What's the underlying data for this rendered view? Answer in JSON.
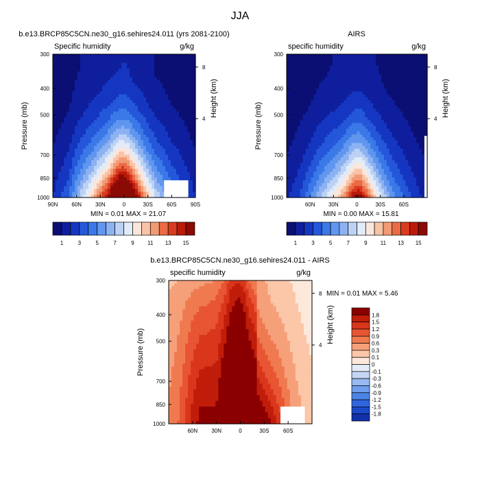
{
  "main_title": "JJA",
  "palettes": {
    "q": [
      "#0b0f73",
      "#0f1e9c",
      "#1536c0",
      "#2457d9",
      "#3b78e8",
      "#6096ee",
      "#8db2f2",
      "#bcd2f5",
      "#e2ebf8",
      "#fbe6dc",
      "#f8c3a6",
      "#f29a73",
      "#ea6b45",
      "#d93b20",
      "#bb1a0a",
      "#8b0a05",
      "#7a0000"
    ],
    "d": [
      "#0b0f73",
      "#1030a8",
      "#1a48c8",
      "#2f65dd",
      "#4a84e6",
      "#6e9eec",
      "#98b9f1",
      "#c4d6f5",
      "#e4ecf8",
      "#fde8dc",
      "#fbc7a8",
      "#f6a07a",
      "#f07a50",
      "#e85533",
      "#d9361c",
      "#c01d0a",
      "#8b0000"
    ]
  },
  "chart_data": [
    {
      "type": "heatmap",
      "panel": "model",
      "title": "b.e13.BRCP85C5CN.ne30_g16.sehires24.011 (yrs 2081-2100)",
      "left_label": "Specific humidity",
      "right_label": "g/kg",
      "ylabel": "Pressure (mb)",
      "y2label": "Height (km)",
      "yticks": [
        "300",
        "400",
        "500",
        "700",
        "850",
        "1000"
      ],
      "y2ticks": [
        "8",
        "4"
      ],
      "xticks": [
        "90N",
        "60N",
        "30N",
        "0",
        "30S",
        "60S",
        "90S"
      ],
      "xlim": [
        "90N",
        "90S"
      ],
      "ylim": [
        1000,
        300
      ],
      "min_max": "MIN =  0.01   MAX =  21.07",
      "levels": [
        1,
        2,
        3,
        4,
        5,
        6,
        7,
        8,
        9,
        10,
        11,
        12,
        13,
        14,
        15
      ],
      "colorbar_labels": [
        "1",
        "3",
        "5",
        "7",
        "9",
        "11",
        "13",
        "15"
      ],
      "profile": {
        "lat": [
          90,
          80,
          70,
          60,
          50,
          40,
          30,
          20,
          12,
          5,
          0,
          -5,
          -10,
          -20,
          -30,
          -40,
          -50,
          -60,
          -70,
          -80,
          -90
        ],
        "peak": [
          2.0,
          3.0,
          4.0,
          6.5,
          8.5,
          10.5,
          13,
          15.5,
          19,
          21,
          21,
          20,
          18,
          14,
          10.5,
          8,
          6.5,
          5,
          4,
          3,
          2
        ],
        "top": [
          0.4,
          0.5,
          0.6,
          0.9,
          1.1,
          1.3,
          1.5,
          1.7,
          1.8,
          1.9,
          2.0,
          1.9,
          1.7,
          1.5,
          1.2,
          0.9,
          0.8,
          0.6,
          0.5,
          0.4,
          0.3
        ]
      },
      "masked": "south-pole-surface"
    },
    {
      "type": "heatmap",
      "panel": "obs",
      "title": "AIRS",
      "left_label": "specific humidity",
      "right_label": "g/kg",
      "ylabel": "Pressure (mb)",
      "y2label": "Height (km)",
      "yticks": [
        "300",
        "400",
        "500",
        "700",
        "850",
        "1000"
      ],
      "y2ticks": [
        "8",
        "4"
      ],
      "xticks": [
        "60N",
        "30N",
        "0",
        "30S",
        "60S"
      ],
      "xlim": [
        "90N",
        "90S"
      ],
      "ylim": [
        1000,
        300
      ],
      "min_max": "MIN =  0.00   MAX =  15.81",
      "levels": [
        1,
        2,
        3,
        4,
        5,
        6,
        7,
        8,
        9,
        10,
        11,
        12,
        13,
        14,
        15
      ],
      "colorbar_labels": [
        "1",
        "3",
        "5",
        "7",
        "9",
        "11",
        "13",
        "15"
      ],
      "profile": {
        "lat": [
          90,
          80,
          70,
          60,
          50,
          40,
          30,
          20,
          12,
          5,
          0,
          -5,
          -10,
          -20,
          -30,
          -40,
          -50,
          -60,
          -70,
          -80,
          -90
        ],
        "peak": [
          1.8,
          2.5,
          3.5,
          5,
          6.5,
          8,
          9.5,
          11,
          13,
          15,
          15.8,
          15.5,
          14,
          11,
          8.5,
          6.5,
          5,
          4,
          3,
          2.2,
          1.5
        ],
        "top": [
          0.3,
          0.4,
          0.5,
          0.6,
          0.8,
          0.9,
          1.0,
          1.2,
          1.3,
          1.4,
          1.4,
          1.4,
          1.3,
          1.1,
          0.9,
          0.7,
          0.6,
          0.5,
          0.4,
          0.3,
          0.3
        ]
      },
      "masked": "poles"
    },
    {
      "type": "heatmap",
      "panel": "diff",
      "title": "b.e13.BRCP85C5CN.ne30_g16.sehires24.011 - AIRS",
      "left_label": "specific humidity",
      "right_label": "g/kg",
      "ylabel": "Pressure (mb)",
      "y2label": "Height (km)",
      "yticks": [
        "300",
        "400",
        "500",
        "700",
        "850",
        "1000"
      ],
      "y2ticks": [
        "8",
        "4"
      ],
      "xticks": [
        "60N",
        "30N",
        "0",
        "30S",
        "60S"
      ],
      "xlim": [
        "90N",
        "90S"
      ],
      "ylim": [
        1000,
        300
      ],
      "min_max": "MIN =  0.01   MAX =   5.46",
      "levels": [
        -1.8,
        -1.5,
        -1.2,
        -0.9,
        -0.6,
        -0.3,
        -0.1,
        0,
        0.1,
        0.3,
        0.6,
        0.9,
        1.2,
        1.5,
        1.8
      ],
      "colorbar_labels": [
        "1.8",
        "1.5",
        "1.2",
        "0.9",
        "0.6",
        "0.3",
        "0.1",
        "0",
        "-0.1",
        "-0.3",
        "-0.6",
        "-0.9",
        "-1.2",
        "-1.5",
        "-1.8"
      ],
      "profile": {
        "lat": [
          90,
          80,
          70,
          60,
          50,
          40,
          30,
          20,
          12,
          5,
          0,
          -5,
          -10,
          -20,
          -30,
          -40,
          -50,
          -60,
          -70,
          -80,
          -90
        ],
        "peak": [
          1.2,
          1.5,
          2.2,
          3.0,
          3.5,
          3.5,
          3.5,
          4.5,
          5.2,
          5.4,
          5.46,
          5.3,
          5.0,
          4.5,
          3.8,
          3.2,
          2.5,
          1.6,
          0.9,
          0.5,
          0.3
        ],
        "top": [
          0.4,
          0.5,
          0.6,
          0.7,
          0.8,
          0.9,
          1.1,
          1.5,
          2.3,
          2.6,
          2.6,
          2.2,
          1.5,
          0.9,
          0.6,
          0.4,
          0.3,
          0.2,
          0.15,
          0.1,
          0.1
        ]
      },
      "masked": "south-pole-surface"
    }
  ]
}
